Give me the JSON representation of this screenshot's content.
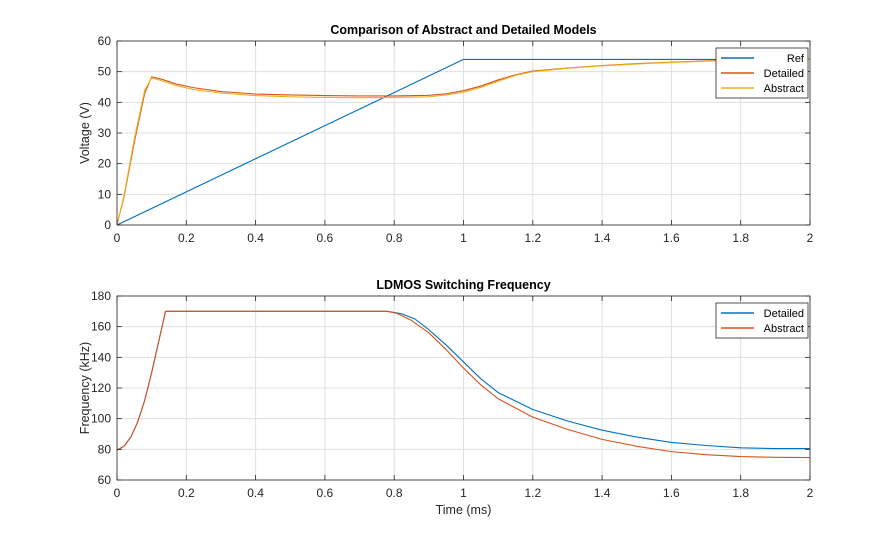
{
  "chart_data": [
    {
      "type": "line",
      "title": "Comparison of Abstract and Detailed Models",
      "xlabel": "",
      "ylabel": "Voltage (V)",
      "xlim": [
        0,
        2
      ],
      "ylim": [
        0,
        60
      ],
      "xticks": [
        0,
        0.2,
        0.4,
        0.6,
        0.8,
        1,
        1.2,
        1.4,
        1.6,
        1.8,
        2
      ],
      "xtick_labels": [
        "0",
        "0.2",
        "0.4",
        "0.6",
        "0.8",
        "1",
        "1.2",
        "1.4",
        "1.6",
        "1.8",
        "2"
      ],
      "yticks": [
        0,
        10,
        20,
        30,
        40,
        50,
        60
      ],
      "ytick_labels": [
        "0",
        "10",
        "20",
        "30",
        "40",
        "50",
        "60"
      ],
      "grid": true,
      "legend_position": "top-right",
      "series": [
        {
          "name": "Ref",
          "color": "#0072bd",
          "points": [
            [
              0,
              0
            ],
            [
              1.0,
              54
            ],
            [
              2.0,
              54
            ]
          ]
        },
        {
          "name": "Detailed",
          "color": "#d95319",
          "points": [
            [
              0,
              0
            ],
            [
              0.02,
              9
            ],
            [
              0.05,
              27
            ],
            [
              0.08,
              43
            ],
            [
              0.1,
              48.3
            ],
            [
              0.13,
              47.5
            ],
            [
              0.17,
              46
            ],
            [
              0.22,
              44.8
            ],
            [
              0.3,
              43.5
            ],
            [
              0.4,
              42.7
            ],
            [
              0.5,
              42.4
            ],
            [
              0.6,
              42.2
            ],
            [
              0.7,
              42.1
            ],
            [
              0.8,
              42.1
            ],
            [
              0.9,
              42.3
            ],
            [
              0.95,
              42.8
            ],
            [
              1.0,
              43.8
            ],
            [
              1.05,
              45.3
            ],
            [
              1.1,
              47.3
            ],
            [
              1.15,
              49
            ],
            [
              1.2,
              50.2
            ],
            [
              1.3,
              51.2
            ],
            [
              1.4,
              52
            ],
            [
              1.5,
              52.6
            ],
            [
              1.6,
              53.1
            ],
            [
              1.7,
              53.5
            ],
            [
              1.8,
              53.8
            ],
            [
              1.9,
              53.9
            ],
            [
              2.0,
              54
            ]
          ]
        },
        {
          "name": "Abstract",
          "color": "#edb120",
          "points": [
            [
              0,
              0
            ],
            [
              0.02,
              9.5
            ],
            [
              0.05,
              28
            ],
            [
              0.08,
              44
            ],
            [
              0.1,
              48
            ],
            [
              0.13,
              47
            ],
            [
              0.17,
              45.5
            ],
            [
              0.22,
              44.2
            ],
            [
              0.3,
              43
            ],
            [
              0.4,
              42.2
            ],
            [
              0.5,
              41.8
            ],
            [
              0.6,
              41.6
            ],
            [
              0.7,
              41.5
            ],
            [
              0.8,
              41.6
            ],
            [
              0.9,
              41.8
            ],
            [
              0.95,
              42.4
            ],
            [
              1.0,
              43.3
            ],
            [
              1.05,
              44.9
            ],
            [
              1.1,
              46.9
            ],
            [
              1.15,
              48.8
            ],
            [
              1.2,
              50
            ],
            [
              1.3,
              51.1
            ],
            [
              1.4,
              51.9
            ],
            [
              1.5,
              52.5
            ],
            [
              1.6,
              53
            ],
            [
              1.7,
              53.4
            ],
            [
              1.8,
              53.7
            ],
            [
              1.9,
              53.9
            ],
            [
              2.0,
              54
            ]
          ]
        }
      ]
    },
    {
      "type": "line",
      "title": "LDMOS Switching Frequency",
      "xlabel": "Time (ms)",
      "ylabel": "Frequency (kHz)",
      "xlim": [
        0,
        2
      ],
      "ylim": [
        60,
        180
      ],
      "xticks": [
        0,
        0.2,
        0.4,
        0.6,
        0.8,
        1,
        1.2,
        1.4,
        1.6,
        1.8,
        2
      ],
      "xtick_labels": [
        "0",
        "0.2",
        "0.4",
        "0.6",
        "0.8",
        "1",
        "1.2",
        "1.4",
        "1.6",
        "1.8",
        "2"
      ],
      "yticks": [
        60,
        80,
        100,
        120,
        140,
        160,
        180
      ],
      "ytick_labels": [
        "60",
        "80",
        "100",
        "120",
        "140",
        "160",
        "180"
      ],
      "grid": true,
      "legend_position": "top-right",
      "series": [
        {
          "name": "Detailed",
          "color": "#0072bd",
          "points": [
            [
              0,
              79.5
            ],
            [
              0.02,
              82
            ],
            [
              0.04,
              88
            ],
            [
              0.06,
              98
            ],
            [
              0.08,
              112
            ],
            [
              0.1,
              130
            ],
            [
              0.12,
              150
            ],
            [
              0.14,
              170
            ],
            [
              0.3,
              170
            ],
            [
              0.5,
              170
            ],
            [
              0.7,
              170
            ],
            [
              0.78,
              170
            ],
            [
              0.82,
              168.5
            ],
            [
              0.86,
              165
            ],
            [
              0.9,
              158
            ],
            [
              0.95,
              148
            ],
            [
              1.0,
              137
            ],
            [
              1.05,
              126
            ],
            [
              1.1,
              117
            ],
            [
              1.2,
              106
            ],
            [
              1.3,
              98.5
            ],
            [
              1.4,
              92.5
            ],
            [
              1.5,
              88
            ],
            [
              1.6,
              84.5
            ],
            [
              1.7,
              82.5
            ],
            [
              1.8,
              81
            ],
            [
              1.9,
              80.5
            ],
            [
              2.0,
              80.5
            ]
          ]
        },
        {
          "name": "Abstract",
          "color": "#d95319",
          "points": [
            [
              0,
              79.5
            ],
            [
              0.02,
              82
            ],
            [
              0.04,
              88
            ],
            [
              0.06,
              98
            ],
            [
              0.08,
              112
            ],
            [
              0.1,
              130
            ],
            [
              0.12,
              150
            ],
            [
              0.14,
              170
            ],
            [
              0.3,
              170
            ],
            [
              0.5,
              170
            ],
            [
              0.7,
              170
            ],
            [
              0.78,
              170
            ],
            [
              0.81,
              168.5
            ],
            [
              0.85,
              164
            ],
            [
              0.9,
              156
            ],
            [
              0.95,
              145
            ],
            [
              1.0,
              133
            ],
            [
              1.05,
              122
            ],
            [
              1.1,
              113
            ],
            [
              1.2,
              101
            ],
            [
              1.3,
              93
            ],
            [
              1.4,
              86.5
            ],
            [
              1.5,
              82
            ],
            [
              1.6,
              78.5
            ],
            [
              1.7,
              76.5
            ],
            [
              1.8,
              75.3
            ],
            [
              1.9,
              74.8
            ],
            [
              2.0,
              74.6
            ]
          ]
        }
      ]
    }
  ]
}
